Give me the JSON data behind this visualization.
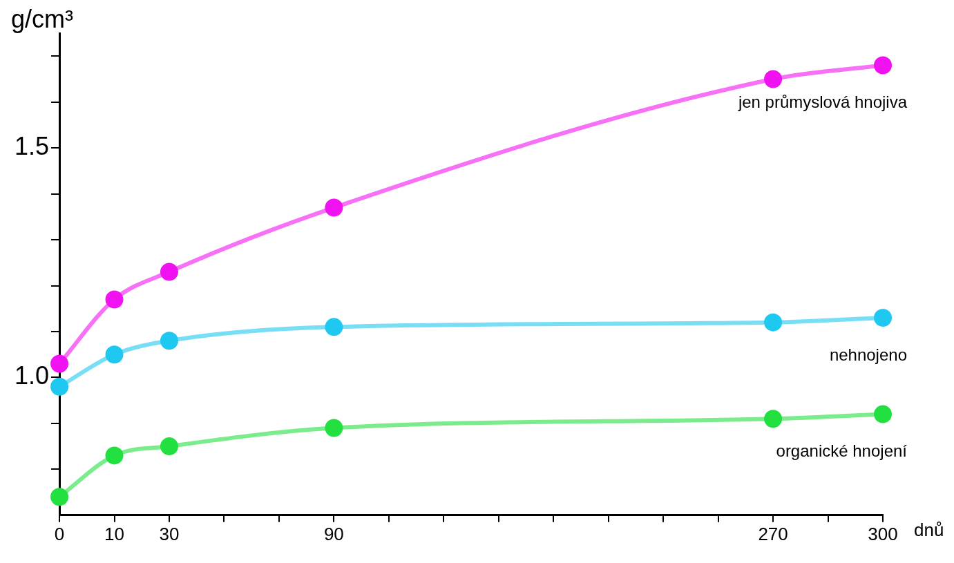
{
  "chart_data": {
    "type": "line",
    "categories": [
      "0",
      "10",
      "30",
      null,
      null,
      "90",
      null,
      null,
      null,
      null,
      null,
      null,
      null,
      "270",
      null,
      "300"
    ],
    "xlabel": "dnů",
    "ylabel": "g/cm³",
    "ylim": [
      0.7,
      1.75
    ],
    "yticks": [
      {
        "value": 0.8,
        "label": null
      },
      {
        "value": 0.9,
        "label": null
      },
      {
        "value": 1.0,
        "label": "1.0"
      },
      {
        "value": 1.1,
        "label": null
      },
      {
        "value": 1.2,
        "label": null
      },
      {
        "value": 1.3,
        "label": null
      },
      {
        "value": 1.4,
        "label": null
      },
      1.5,
      {
        "value": 1.6,
        "label": null
      },
      {
        "value": 1.7,
        "label": null
      }
    ],
    "series": [
      {
        "name": "jen průmyslová hnojiva",
        "color": "#f012f0",
        "values": [
          1.03,
          1.17,
          1.23,
          null,
          null,
          1.37,
          null,
          null,
          null,
          null,
          null,
          null,
          null,
          1.65,
          null,
          1.68
        ]
      },
      {
        "name": "nehnojeno",
        "color": "#1ec8f0",
        "values": [
          0.98,
          1.05,
          1.08,
          null,
          null,
          1.11,
          null,
          null,
          null,
          null,
          null,
          null,
          null,
          1.12,
          null,
          1.13
        ]
      },
      {
        "name": "organické hnojení",
        "color": "#22e040",
        "values": [
          0.74,
          0.83,
          0.85,
          null,
          null,
          0.89,
          null,
          null,
          null,
          null,
          null,
          null,
          null,
          0.91,
          null,
          0.92
        ]
      }
    ],
    "grid": false,
    "legend": false,
    "marker": "circle",
    "line_style": "solid"
  }
}
